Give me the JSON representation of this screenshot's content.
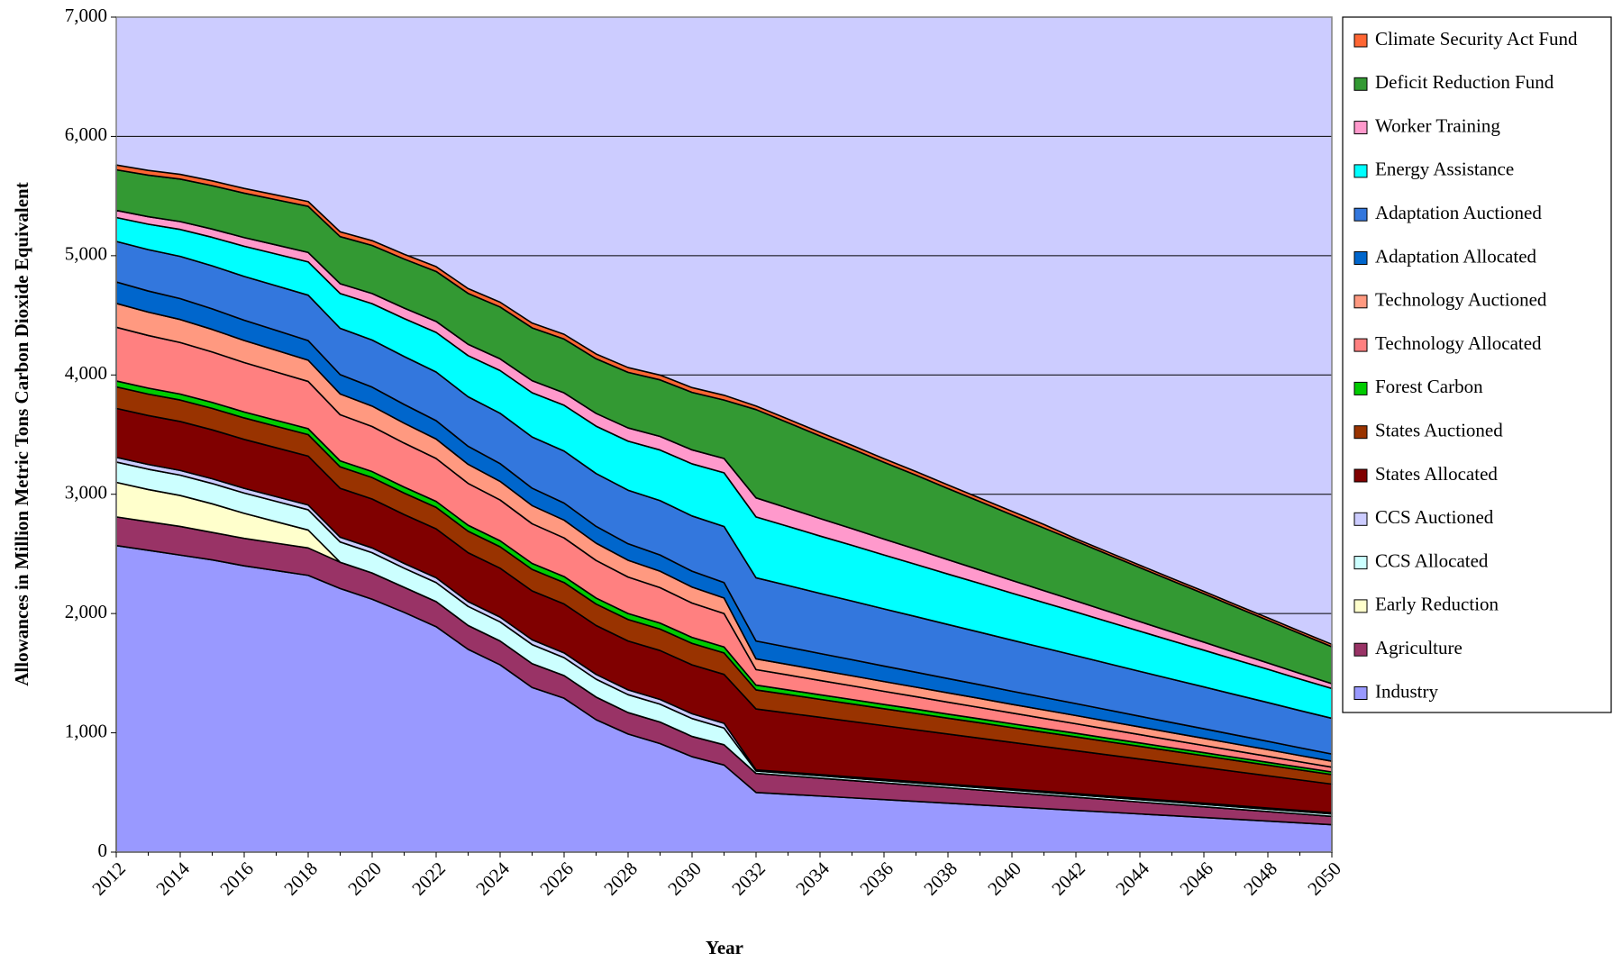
{
  "chart_data": {
    "type": "stacked-area",
    "x_label": "Year",
    "y_label": "Allowances in Million Metric Tons Carbon Dioxide Equivalent",
    "x": [
      2012,
      2013,
      2014,
      2015,
      2016,
      2017,
      2018,
      2019,
      2020,
      2021,
      2022,
      2023,
      2024,
      2025,
      2026,
      2027,
      2028,
      2029,
      2030,
      2031,
      2032,
      2033,
      2034,
      2035,
      2036,
      2037,
      2038,
      2039,
      2040,
      2041,
      2042,
      2043,
      2044,
      2045,
      2046,
      2047,
      2048,
      2049,
      2050
    ],
    "xlim": [
      2012,
      2050
    ],
    "xticks": [
      2012,
      2014,
      2016,
      2018,
      2020,
      2022,
      2024,
      2026,
      2028,
      2030,
      2032,
      2034,
      2036,
      2038,
      2040,
      2042,
      2044,
      2046,
      2048,
      2050
    ],
    "ylim": [
      0,
      7000
    ],
    "yticks": [
      0,
      {
        "value": 1000,
        "label": "1,000"
      },
      {
        "value": 2000,
        "label": "2,000"
      },
      {
        "value": 3000,
        "label": "3,000"
      },
      {
        "value": 4000,
        "label": "4,000"
      },
      {
        "value": 5000,
        "label": "5,000"
      },
      {
        "value": 6000,
        "label": "6,000"
      },
      {
        "value": 7000,
        "label": "7,000"
      }
    ],
    "grid": true,
    "legend": "right",
    "series": [
      {
        "name": "Industry",
        "color": "#9999ff",
        "values": [
          2570,
          2530,
          2490,
          2450,
          2400,
          2360,
          2320,
          2210,
          2120,
          2010,
          1890,
          1700,
          1570,
          1380,
          1290,
          1110,
          990,
          910,
          800,
          730,
          500,
          485,
          470,
          455,
          440,
          425,
          410,
          395,
          380,
          365,
          350,
          335,
          320,
          305,
          290,
          275,
          260,
          245,
          230
        ]
      },
      {
        "name": "Agriculture",
        "color": "#993366",
        "values": [
          240,
          240,
          240,
          230,
          230,
          230,
          230,
          220,
          220,
          210,
          210,
          200,
          200,
          200,
          190,
          190,
          180,
          180,
          170,
          170,
          160,
          155,
          150,
          145,
          140,
          135,
          130,
          125,
          120,
          115,
          110,
          105,
          100,
          95,
          90,
          85,
          80,
          75,
          70
        ]
      },
      {
        "name": "Early Reduction",
        "color": "#ffffcc",
        "values": [
          290,
          270,
          260,
          240,
          210,
          180,
          150,
          0,
          0,
          0,
          0,
          0,
          0,
          0,
          0,
          0,
          0,
          0,
          0,
          0,
          0,
          0,
          0,
          0,
          0,
          0,
          0,
          0,
          0,
          0,
          0,
          0,
          0,
          0,
          0,
          0,
          0,
          0,
          0
        ]
      },
      {
        "name": "CCS Allocated",
        "color": "#ccffff",
        "values": [
          170,
          170,
          170,
          170,
          170,
          170,
          170,
          170,
          170,
          160,
          160,
          160,
          160,
          160,
          150,
          150,
          150,
          150,
          150,
          140,
          20,
          20,
          20,
          20,
          20,
          20,
          20,
          20,
          20,
          20,
          20,
          20,
          20,
          20,
          20,
          20,
          20,
          20,
          20
        ]
      },
      {
        "name": "CCS Auctioned",
        "color": "#ccccff",
        "values": [
          40,
          40,
          40,
          40,
          40,
          40,
          40,
          40,
          40,
          40,
          40,
          40,
          40,
          40,
          40,
          40,
          40,
          40,
          40,
          40,
          10,
          10,
          10,
          10,
          10,
          10,
          10,
          10,
          10,
          10,
          10,
          10,
          10,
          10,
          10,
          10,
          10,
          10,
          10
        ]
      },
      {
        "name": "States Allocated",
        "color": "#800000",
        "values": [
          410,
          410,
          410,
          410,
          410,
          410,
          410,
          410,
          410,
          410,
          410,
          410,
          410,
          410,
          410,
          410,
          410,
          410,
          410,
          410,
          510,
          495,
          480,
          465,
          450,
          435,
          420,
          405,
          390,
          375,
          360,
          345,
          330,
          315,
          300,
          285,
          270,
          255,
          240
        ]
      },
      {
        "name": "States Auctioned",
        "color": "#993300",
        "values": [
          180,
          180,
          180,
          180,
          180,
          180,
          180,
          180,
          180,
          180,
          180,
          180,
          180,
          180,
          180,
          180,
          180,
          180,
          180,
          180,
          160,
          156,
          151,
          147,
          142,
          138,
          133,
          129,
          124,
          120,
          116,
          111,
          107,
          102,
          98,
          93,
          89,
          84,
          80
        ]
      },
      {
        "name": "Forest Carbon",
        "color": "#00cc00",
        "values": [
          50,
          50,
          50,
          50,
          50,
          50,
          50,
          50,
          50,
          50,
          50,
          50,
          50,
          50,
          50,
          50,
          50,
          50,
          50,
          50,
          40,
          39,
          38,
          37,
          36,
          35,
          34,
          33,
          32,
          31,
          30,
          29,
          28,
          27,
          26,
          25,
          24,
          23,
          22
        ]
      },
      {
        "name": "Technology Allocated",
        "color": "#ff8080",
        "values": [
          450,
          441,
          432,
          423,
          414,
          405,
          396,
          387,
          378,
          369,
          360,
          351,
          342,
          333,
          324,
          315,
          306,
          297,
          288,
          280,
          130,
          125,
          120,
          115,
          110,
          105,
          100,
          95,
          90,
          85,
          80,
          75,
          70,
          65,
          60,
          55,
          50,
          45,
          40
        ]
      },
      {
        "name": "Technology Auctioned",
        "color": "#ff9980",
        "values": [
          200,
          196,
          193,
          189,
          185,
          182,
          178,
          174,
          171,
          167,
          163,
          160,
          156,
          152,
          149,
          145,
          141,
          138,
          134,
          130,
          90,
          88,
          86,
          84,
          82,
          80,
          78,
          76,
          73,
          71,
          69,
          67,
          64,
          62,
          60,
          58,
          56,
          53,
          50
        ]
      },
      {
        "name": "Adaptation Allocated",
        "color": "#0066cc",
        "values": [
          180,
          177,
          175,
          172,
          170,
          167,
          164,
          162,
          159,
          157,
          154,
          151,
          149,
          146,
          143,
          141,
          138,
          136,
          133,
          130,
          150,
          145,
          140,
          135,
          130,
          125,
          120,
          115,
          110,
          105,
          100,
          95,
          90,
          85,
          80,
          75,
          70,
          65,
          60
        ]
      },
      {
        "name": "Adaptation Auctioned",
        "color": "#3377dd",
        "values": [
          340,
          347,
          354,
          361,
          367,
          374,
          381,
          388,
          395,
          402,
          408,
          415,
          422,
          429,
          436,
          443,
          449,
          456,
          463,
          470,
          530,
          517,
          504,
          492,
          479,
          466,
          453,
          440,
          428,
          415,
          402,
          389,
          376,
          364,
          351,
          338,
          325,
          312,
          300
        ]
      },
      {
        "name": "Energy Assistance",
        "color": "#00ffff",
        "values": [
          200,
          213,
          226,
          239,
          253,
          266,
          279,
          292,
          305,
          318,
          332,
          345,
          358,
          371,
          384,
          397,
          411,
          424,
          437,
          450,
          510,
          496,
          481,
          467,
          452,
          438,
          423,
          409,
          394,
          380,
          366,
          351,
          337,
          322,
          308,
          293,
          279,
          264,
          250
        ]
      },
      {
        "name": "Worker Training",
        "color": "#ff99cc",
        "values": [
          60,
          63,
          66,
          69,
          73,
          76,
          79,
          82,
          85,
          88,
          92,
          95,
          98,
          101,
          104,
          107,
          111,
          114,
          117,
          120,
          160,
          153,
          147,
          140,
          133,
          127,
          120,
          113,
          107,
          100,
          93,
          87,
          80,
          73,
          67,
          60,
          53,
          47,
          40
        ]
      },
      {
        "name": "Deficit Reduction Fund",
        "color": "#339933",
        "values": [
          340,
          348,
          356,
          364,
          372,
          379,
          387,
          395,
          403,
          411,
          419,
          427,
          435,
          443,
          451,
          458,
          466,
          474,
          482,
          490,
          740,
          716,
          692,
          668,
          644,
          621,
          597,
          573,
          549,
          525,
          501,
          477,
          453,
          430,
          406,
          382,
          358,
          334,
          310
        ]
      },
      {
        "name": "Climate Security Act Fund",
        "color": "#ff6633",
        "values": [
          40,
          40,
          40,
          40,
          40,
          40,
          40,
          40,
          40,
          40,
          40,
          40,
          40,
          40,
          40,
          40,
          40,
          40,
          40,
          40,
          30,
          30,
          30,
          30,
          30,
          30,
          30,
          30,
          30,
          30,
          20,
          20,
          20,
          20,
          20,
          20,
          20,
          20,
          20
        ]
      }
    ]
  }
}
